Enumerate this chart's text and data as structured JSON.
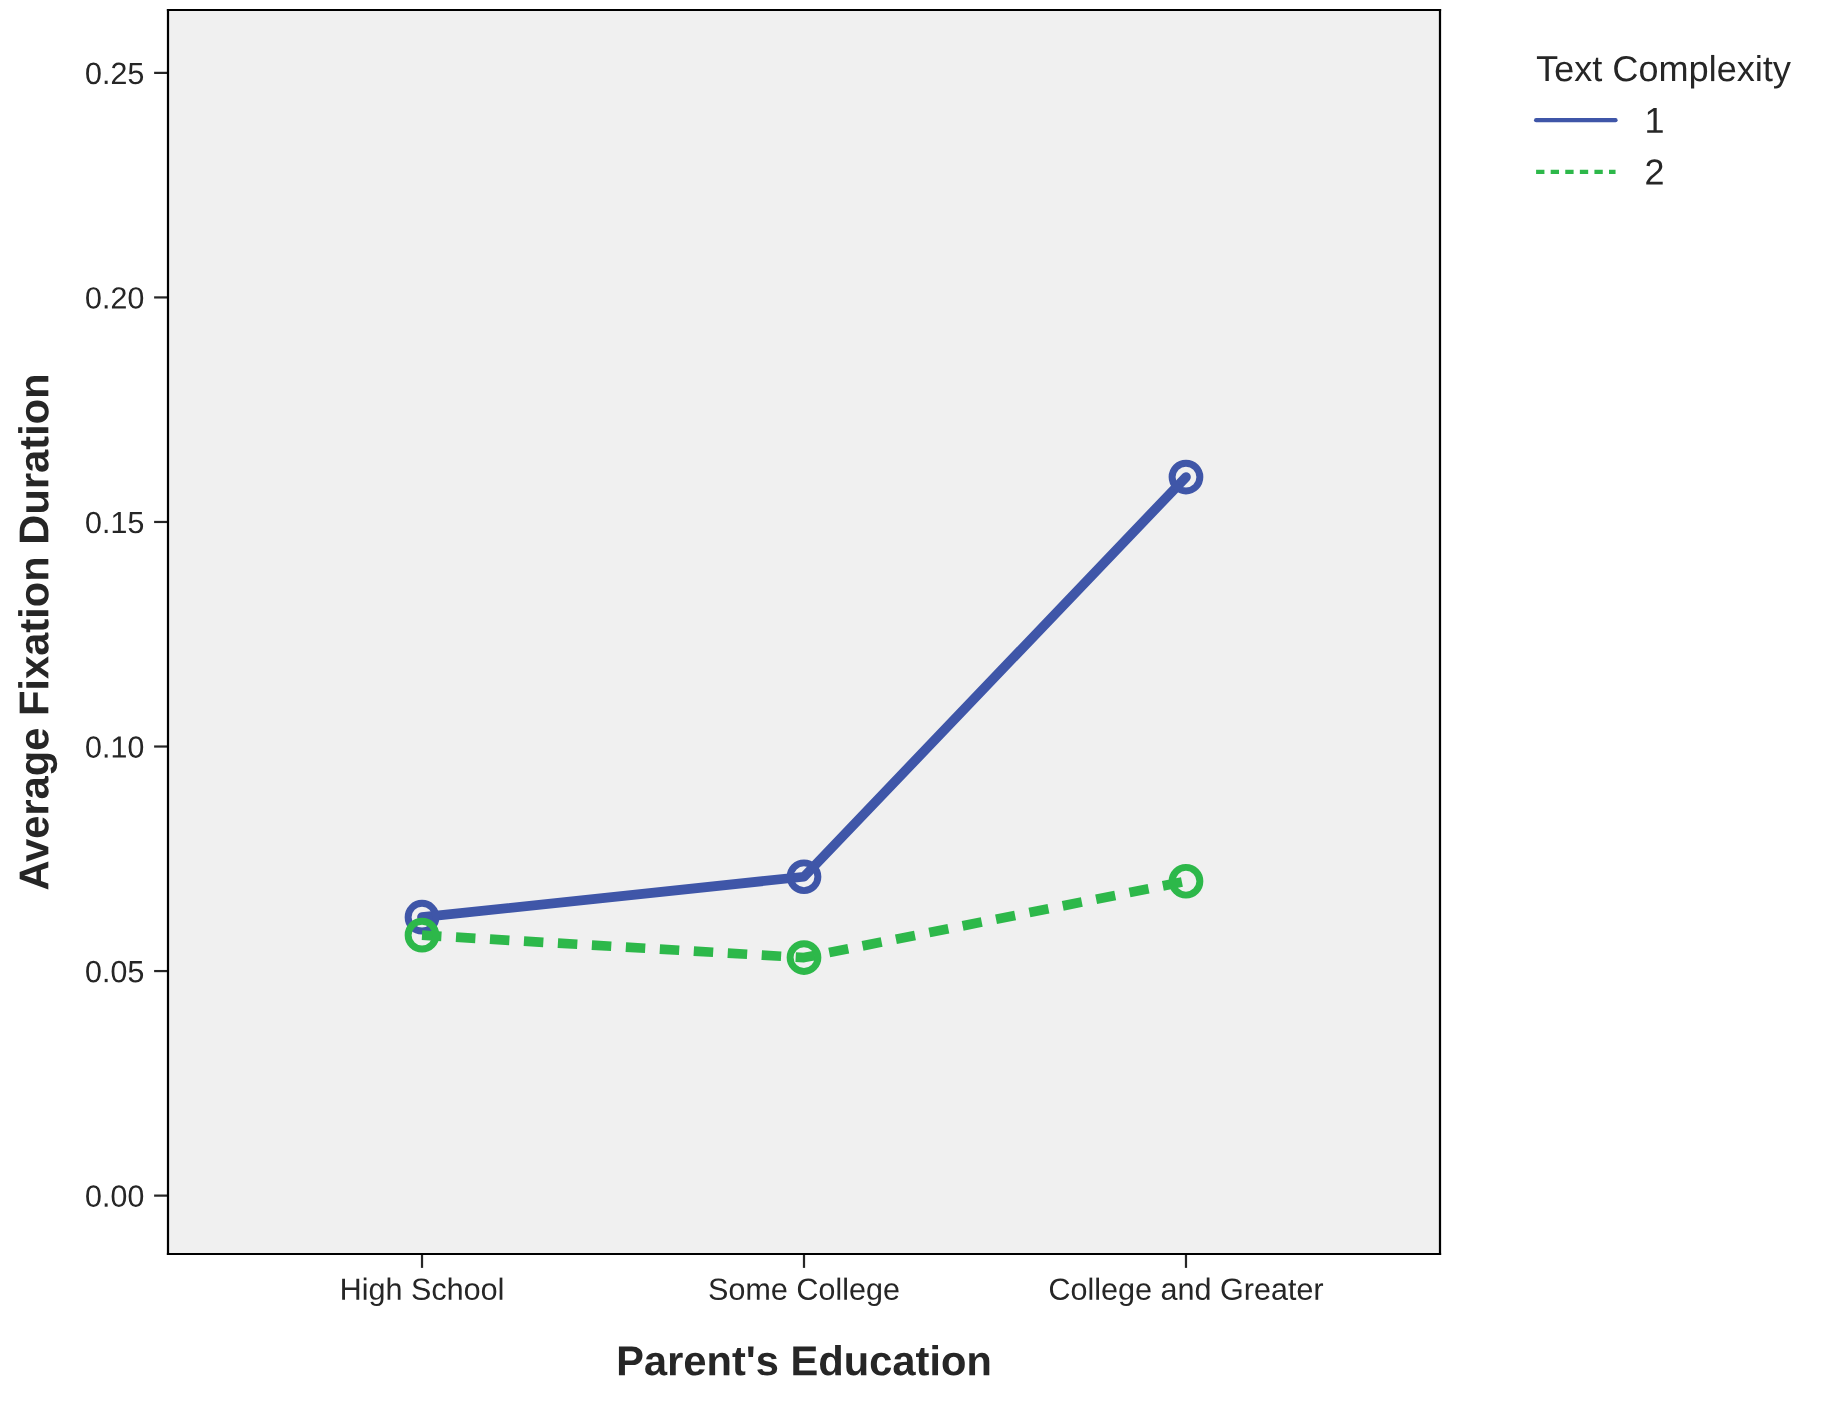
{
  "chart_data": {
    "type": "line",
    "xlabel": "Parent's Education",
    "ylabel": "Average Fixation Duration",
    "legend_title": "Text Complexity",
    "categories": [
      "High School",
      "Some College",
      "College and Greater"
    ],
    "series": [
      {
        "name": "1",
        "color": "#3f56a8",
        "values": [
          0.062,
          0.071,
          0.16
        ],
        "line_style": "solid"
      },
      {
        "name": "2",
        "color": "#2db84a",
        "values": [
          0.058,
          0.053,
          0.07
        ],
        "line_style": "dashed"
      }
    ],
    "ylim": [
      -0.013,
      0.264
    ],
    "yticks": [
      {
        "value": 0,
        "label": "0.00"
      },
      {
        "value": 0.05,
        "label": "0.05"
      },
      {
        "value": 0.1,
        "label": "0.10"
      },
      {
        "value": 0.15,
        "label": "0.15"
      },
      {
        "value": 0.2,
        "label": "0.20"
      },
      {
        "value": 0.25,
        "label": "0.25"
      }
    ],
    "marker": "circle",
    "grid": false,
    "legend": "right"
  }
}
